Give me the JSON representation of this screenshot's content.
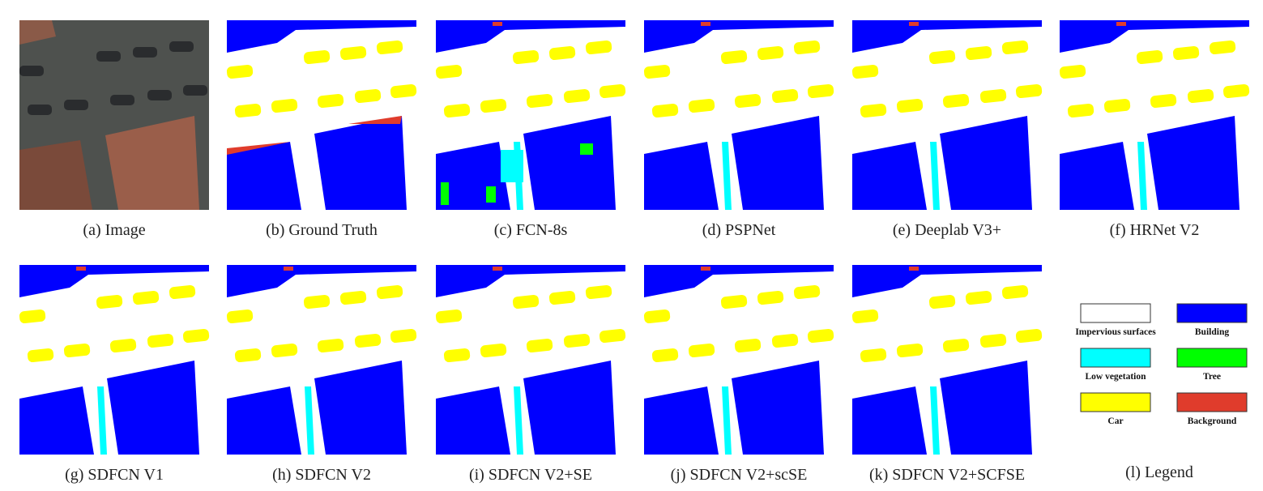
{
  "panels": [
    {
      "caption": "(a) Image"
    },
    {
      "caption": "(b) Ground Truth"
    },
    {
      "caption": "(c) FCN-8s"
    },
    {
      "caption": "(d) PSPNet"
    },
    {
      "caption": "(e) Deeplab V3+"
    },
    {
      "caption": "(f) HRNet V2"
    },
    {
      "caption": "(g) SDFCN V1"
    },
    {
      "caption": "(h) SDFCN V2"
    },
    {
      "caption": "(i) SDFCN V2+SE"
    },
    {
      "caption": "(j) SDFCN V2+scSE"
    },
    {
      "caption": "(k) SDFCN V2+SCFSE"
    }
  ],
  "legend": {
    "caption": "(l) Legend",
    "items": [
      {
        "label": "Impervious surfaces",
        "color": "#ffffff"
      },
      {
        "label": "Building",
        "color": "#0000ff"
      },
      {
        "label": "Low vegetation",
        "color": "#00ffff"
      },
      {
        "label": "Tree",
        "color": "#00ff00"
      },
      {
        "label": "Car",
        "color": "#ffff00"
      },
      {
        "label": "Background",
        "color": "#e03c2c"
      }
    ]
  }
}
